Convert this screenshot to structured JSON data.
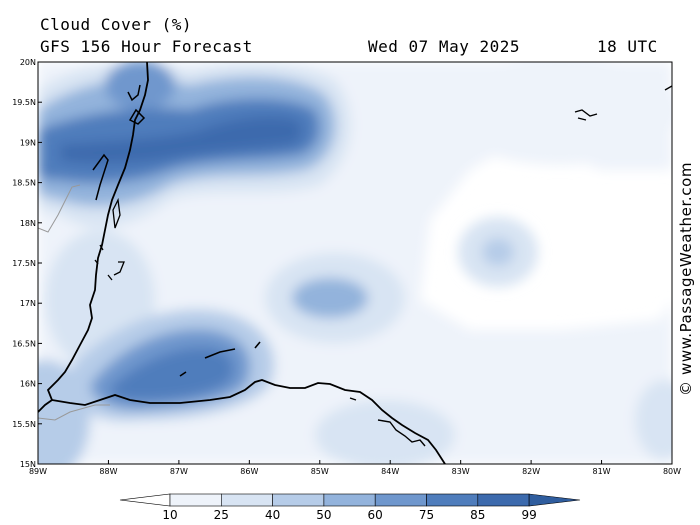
{
  "header": {
    "title": "Cloud Cover (%)",
    "subtitle": "GFS 156 Hour Forecast",
    "date": "Wed 07 May 2025",
    "time": "18 UTC"
  },
  "credit": "© www.PassageWeather.com",
  "axes": {
    "latitude_labels": [
      "20N",
      "19.5N",
      "19N",
      "18.5N",
      "18N",
      "17.5N",
      "17N",
      "16.5N",
      "16N",
      "15.5N",
      "15N"
    ],
    "longitude_labels": [
      "89W",
      "88W",
      "87W",
      "86W",
      "85W",
      "84W",
      "83W",
      "82W",
      "81W",
      "80W"
    ]
  },
  "colorbar": {
    "labels": [
      "10",
      "25",
      "40",
      "50",
      "60",
      "75",
      "85",
      "99"
    ],
    "colors": [
      "#ffffff",
      "#eef3fa",
      "#d8e4f3",
      "#b6cce8",
      "#93b3dc",
      "#6f97cd",
      "#4f7dbc",
      "#3c6aad",
      "#2f5d9e"
    ]
  },
  "map_layers": {
    "coastline_color": "#000000",
    "border_color": "#999999"
  }
}
